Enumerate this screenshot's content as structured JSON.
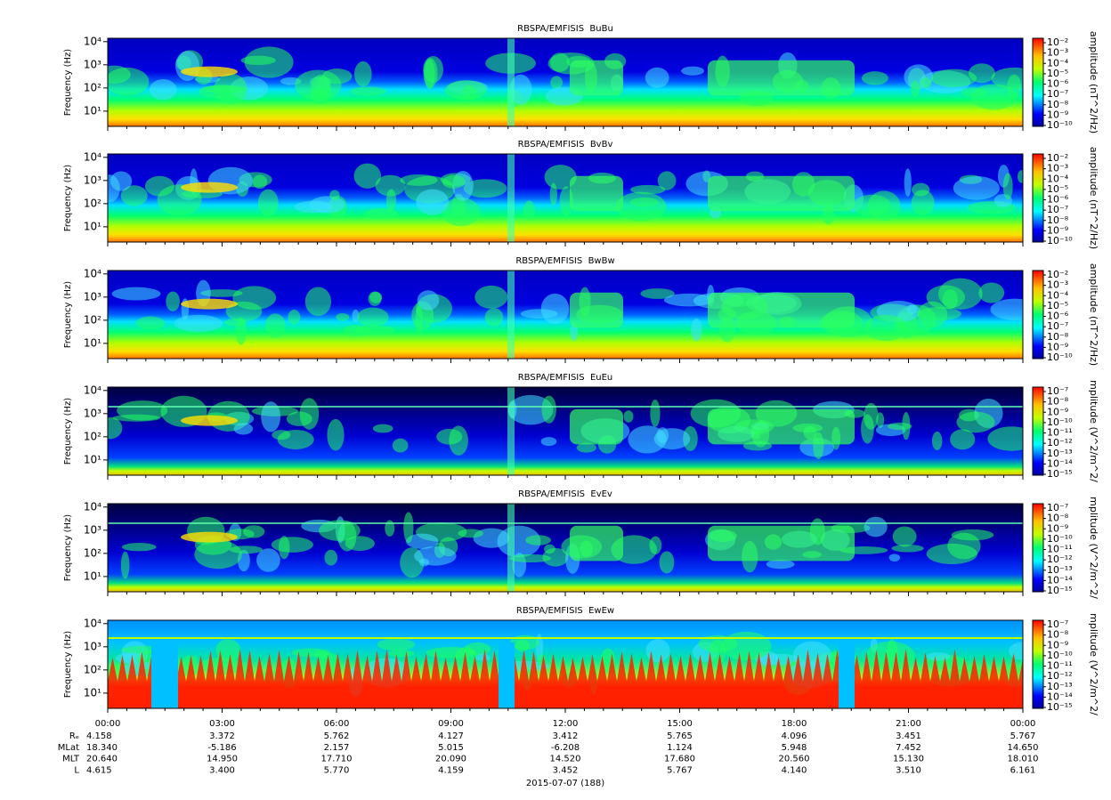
{
  "chart_data": [
    {
      "type": "spectrogram",
      "title": "RBSPA/EMFISIS  BuBu",
      "ylabel": "Frequency (Hz)",
      "yscale": "log",
      "ylim": [
        2.2,
        14000
      ],
      "yticks": [
        {
          "value": 10,
          "label": "10¹"
        },
        {
          "value": 100,
          "label": "10²"
        },
        {
          "value": 1000,
          "label": "10³"
        },
        {
          "value": 10000,
          "label": "10⁴"
        }
      ],
      "colormap": "jet",
      "colorbar": {
        "label": "amplitude (nT^2/Hz)",
        "scale": "log",
        "clim": [
          1e-10,
          0.01
        ],
        "ticks": [
          {
            "value": 0.01,
            "label": "10⁻²"
          },
          {
            "value": 0.001,
            "label": "10⁻³"
          },
          {
            "value": 0.0001,
            "label": "10⁻⁴"
          },
          {
            "value": 1e-05,
            "label": "10⁻⁵"
          },
          {
            "value": 1e-06,
            "label": "10⁻⁶"
          },
          {
            "value": 1e-07,
            "label": "10⁻⁷"
          },
          {
            "value": 1e-08,
            "label": "10⁻⁸"
          },
          {
            "value": 1e-09,
            "label": "10⁻⁹"
          },
          {
            "value": 1e-10,
            "label": "10⁻¹⁰"
          }
        ]
      }
    },
    {
      "type": "spectrogram",
      "title": "RBSPA/EMFISIS  BvBv",
      "ylabel": "Frequency (Hz)",
      "yscale": "log",
      "ylim": [
        2.2,
        14000
      ],
      "yticks": [
        {
          "value": 10,
          "label": "10¹"
        },
        {
          "value": 100,
          "label": "10²"
        },
        {
          "value": 1000,
          "label": "10³"
        },
        {
          "value": 10000,
          "label": "10⁴"
        }
      ],
      "colormap": "jet",
      "colorbar": {
        "label": "amplitude (nT^2/Hz)",
        "scale": "log",
        "clim": [
          1e-10,
          0.01
        ],
        "ticks": [
          {
            "value": 0.01,
            "label": "10⁻²"
          },
          {
            "value": 0.001,
            "label": "10⁻³"
          },
          {
            "value": 0.0001,
            "label": "10⁻⁴"
          },
          {
            "value": 1e-05,
            "label": "10⁻⁵"
          },
          {
            "value": 1e-06,
            "label": "10⁻⁶"
          },
          {
            "value": 1e-07,
            "label": "10⁻⁷"
          },
          {
            "value": 1e-08,
            "label": "10⁻⁸"
          },
          {
            "value": 1e-09,
            "label": "10⁻⁹"
          },
          {
            "value": 1e-10,
            "label": "10⁻¹⁰"
          }
        ]
      }
    },
    {
      "type": "spectrogram",
      "title": "RBSPA/EMFISIS  BwBw",
      "ylabel": "Frequency (Hz)",
      "yscale": "log",
      "ylim": [
        2.2,
        14000
      ],
      "yticks": [
        {
          "value": 10,
          "label": "10¹"
        },
        {
          "value": 100,
          "label": "10²"
        },
        {
          "value": 1000,
          "label": "10³"
        },
        {
          "value": 10000,
          "label": "10⁴"
        }
      ],
      "colormap": "jet",
      "colorbar": {
        "label": "amplitude (nT^2/Hz)",
        "scale": "log",
        "clim": [
          1e-10,
          0.01
        ],
        "ticks": [
          {
            "value": 0.01,
            "label": "10⁻²"
          },
          {
            "value": 0.001,
            "label": "10⁻³"
          },
          {
            "value": 0.0001,
            "label": "10⁻⁴"
          },
          {
            "value": 1e-05,
            "label": "10⁻⁵"
          },
          {
            "value": 1e-06,
            "label": "10⁻⁶"
          },
          {
            "value": 1e-07,
            "label": "10⁻⁷"
          },
          {
            "value": 1e-08,
            "label": "10⁻⁸"
          },
          {
            "value": 1e-09,
            "label": "10⁻⁹"
          },
          {
            "value": 1e-10,
            "label": "10⁻¹⁰"
          }
        ]
      }
    },
    {
      "type": "spectrogram",
      "title": "RBSPA/EMFISIS  EuEu",
      "ylabel": "Frequency (Hz)",
      "yscale": "log",
      "ylim": [
        2.2,
        14000
      ],
      "yticks": [
        {
          "value": 10,
          "label": "10¹"
        },
        {
          "value": 100,
          "label": "10²"
        },
        {
          "value": 1000,
          "label": "10³"
        },
        {
          "value": 10000,
          "label": "10⁴"
        }
      ],
      "colormap": "jet",
      "colorbar": {
        "label": "mplitude (V^2/m^2/",
        "scale": "log",
        "clim": [
          1e-15,
          1e-07
        ],
        "ticks": [
          {
            "value": 1e-07,
            "label": "10⁻⁷"
          },
          {
            "value": 1e-08,
            "label": "10⁻⁸"
          },
          {
            "value": 1e-09,
            "label": "10⁻⁹"
          },
          {
            "value": 1e-10,
            "label": "10⁻¹⁰"
          },
          {
            "value": 1e-11,
            "label": "10⁻¹¹"
          },
          {
            "value": 1e-12,
            "label": "10⁻¹²"
          },
          {
            "value": 1e-13,
            "label": "10⁻¹³"
          },
          {
            "value": 1e-14,
            "label": "10⁻¹⁴"
          },
          {
            "value": 1e-15,
            "label": "10⁻¹⁵"
          }
        ]
      }
    },
    {
      "type": "spectrogram",
      "title": "RBSPA/EMFISIS  EvEv",
      "ylabel": "Frequency (Hz)",
      "yscale": "log",
      "ylim": [
        2.2,
        14000
      ],
      "yticks": [
        {
          "value": 10,
          "label": "10¹"
        },
        {
          "value": 100,
          "label": "10²"
        },
        {
          "value": 1000,
          "label": "10³"
        },
        {
          "value": 10000,
          "label": "10⁴"
        }
      ],
      "colormap": "jet",
      "colorbar": {
        "label": "mplitude (V^2/m^2/",
        "scale": "log",
        "clim": [
          1e-15,
          1e-07
        ],
        "ticks": [
          {
            "value": 1e-07,
            "label": "10⁻⁷"
          },
          {
            "value": 1e-08,
            "label": "10⁻⁸"
          },
          {
            "value": 1e-09,
            "label": "10⁻⁹"
          },
          {
            "value": 1e-10,
            "label": "10⁻¹⁰"
          },
          {
            "value": 1e-11,
            "label": "10⁻¹¹"
          },
          {
            "value": 1e-12,
            "label": "10⁻¹²"
          },
          {
            "value": 1e-13,
            "label": "10⁻¹³"
          },
          {
            "value": 1e-14,
            "label": "10⁻¹⁴"
          },
          {
            "value": 1e-15,
            "label": "10⁻¹⁵"
          }
        ]
      }
    },
    {
      "type": "spectrogram",
      "title": "RBSPA/EMFISIS  EwEw",
      "ylabel": "Frequency (Hz)",
      "yscale": "log",
      "ylim": [
        2.2,
        14000
      ],
      "yticks": [
        {
          "value": 10,
          "label": "10¹"
        },
        {
          "value": 100,
          "label": "10²"
        },
        {
          "value": 1000,
          "label": "10³"
        },
        {
          "value": 10000,
          "label": "10⁴"
        }
      ],
      "colormap": "jet",
      "colorbar": {
        "label": "mplitude (V^2/m^2/",
        "scale": "log",
        "clim": [
          1e-15,
          1e-07
        ],
        "ticks": [
          {
            "value": 1e-07,
            "label": "10⁻⁷"
          },
          {
            "value": 1e-08,
            "label": "10⁻⁸"
          },
          {
            "value": 1e-09,
            "label": "10⁻⁹"
          },
          {
            "value": 1e-10,
            "label": "10⁻¹⁰"
          },
          {
            "value": 1e-11,
            "label": "10⁻¹¹"
          },
          {
            "value": 1e-12,
            "label": "10⁻¹²"
          },
          {
            "value": 1e-13,
            "label": "10⁻¹³"
          },
          {
            "value": 1e-14,
            "label": "10⁻¹⁴"
          },
          {
            "value": 1e-15,
            "label": "10⁻¹⁵"
          }
        ]
      }
    }
  ],
  "x_axis": {
    "xlim": [
      0,
      24
    ],
    "label": "2015-07-07 (188)",
    "xticks": [
      {
        "value": 0,
        "label": "00:00"
      },
      {
        "value": 3,
        "label": "03:00"
      },
      {
        "value": 6,
        "label": "06:00"
      },
      {
        "value": 9,
        "label": "09:00"
      },
      {
        "value": 12,
        "label": "12:00"
      },
      {
        "value": 15,
        "label": "15:00"
      },
      {
        "value": 18,
        "label": "18:00"
      },
      {
        "value": 21,
        "label": "21:00"
      },
      {
        "value": 24,
        "label": "00:00"
      }
    ]
  },
  "ephemeris": {
    "rows": [
      {
        "label": "Rₑ",
        "values": [
          "4.158",
          "3.372",
          "5.762",
          "4.127",
          "3.412",
          "5.765",
          "4.096",
          "3.451",
          "5.767"
        ]
      },
      {
        "label": "MLat",
        "values": [
          "18.340",
          "-5.186",
          "2.157",
          "5.015",
          "-6.208",
          "1.124",
          "5.948",
          "7.452",
          "14.650"
        ]
      },
      {
        "label": "MLT",
        "values": [
          "20.640",
          "14.950",
          "17.710",
          "20.090",
          "14.520",
          "17.680",
          "20.560",
          "15.130",
          "18.010"
        ]
      },
      {
        "label": "L",
        "values": [
          "4.615",
          "3.400",
          "5.770",
          "4.159",
          "3.452",
          "5.767",
          "4.140",
          "3.510",
          "6.161"
        ]
      }
    ]
  }
}
